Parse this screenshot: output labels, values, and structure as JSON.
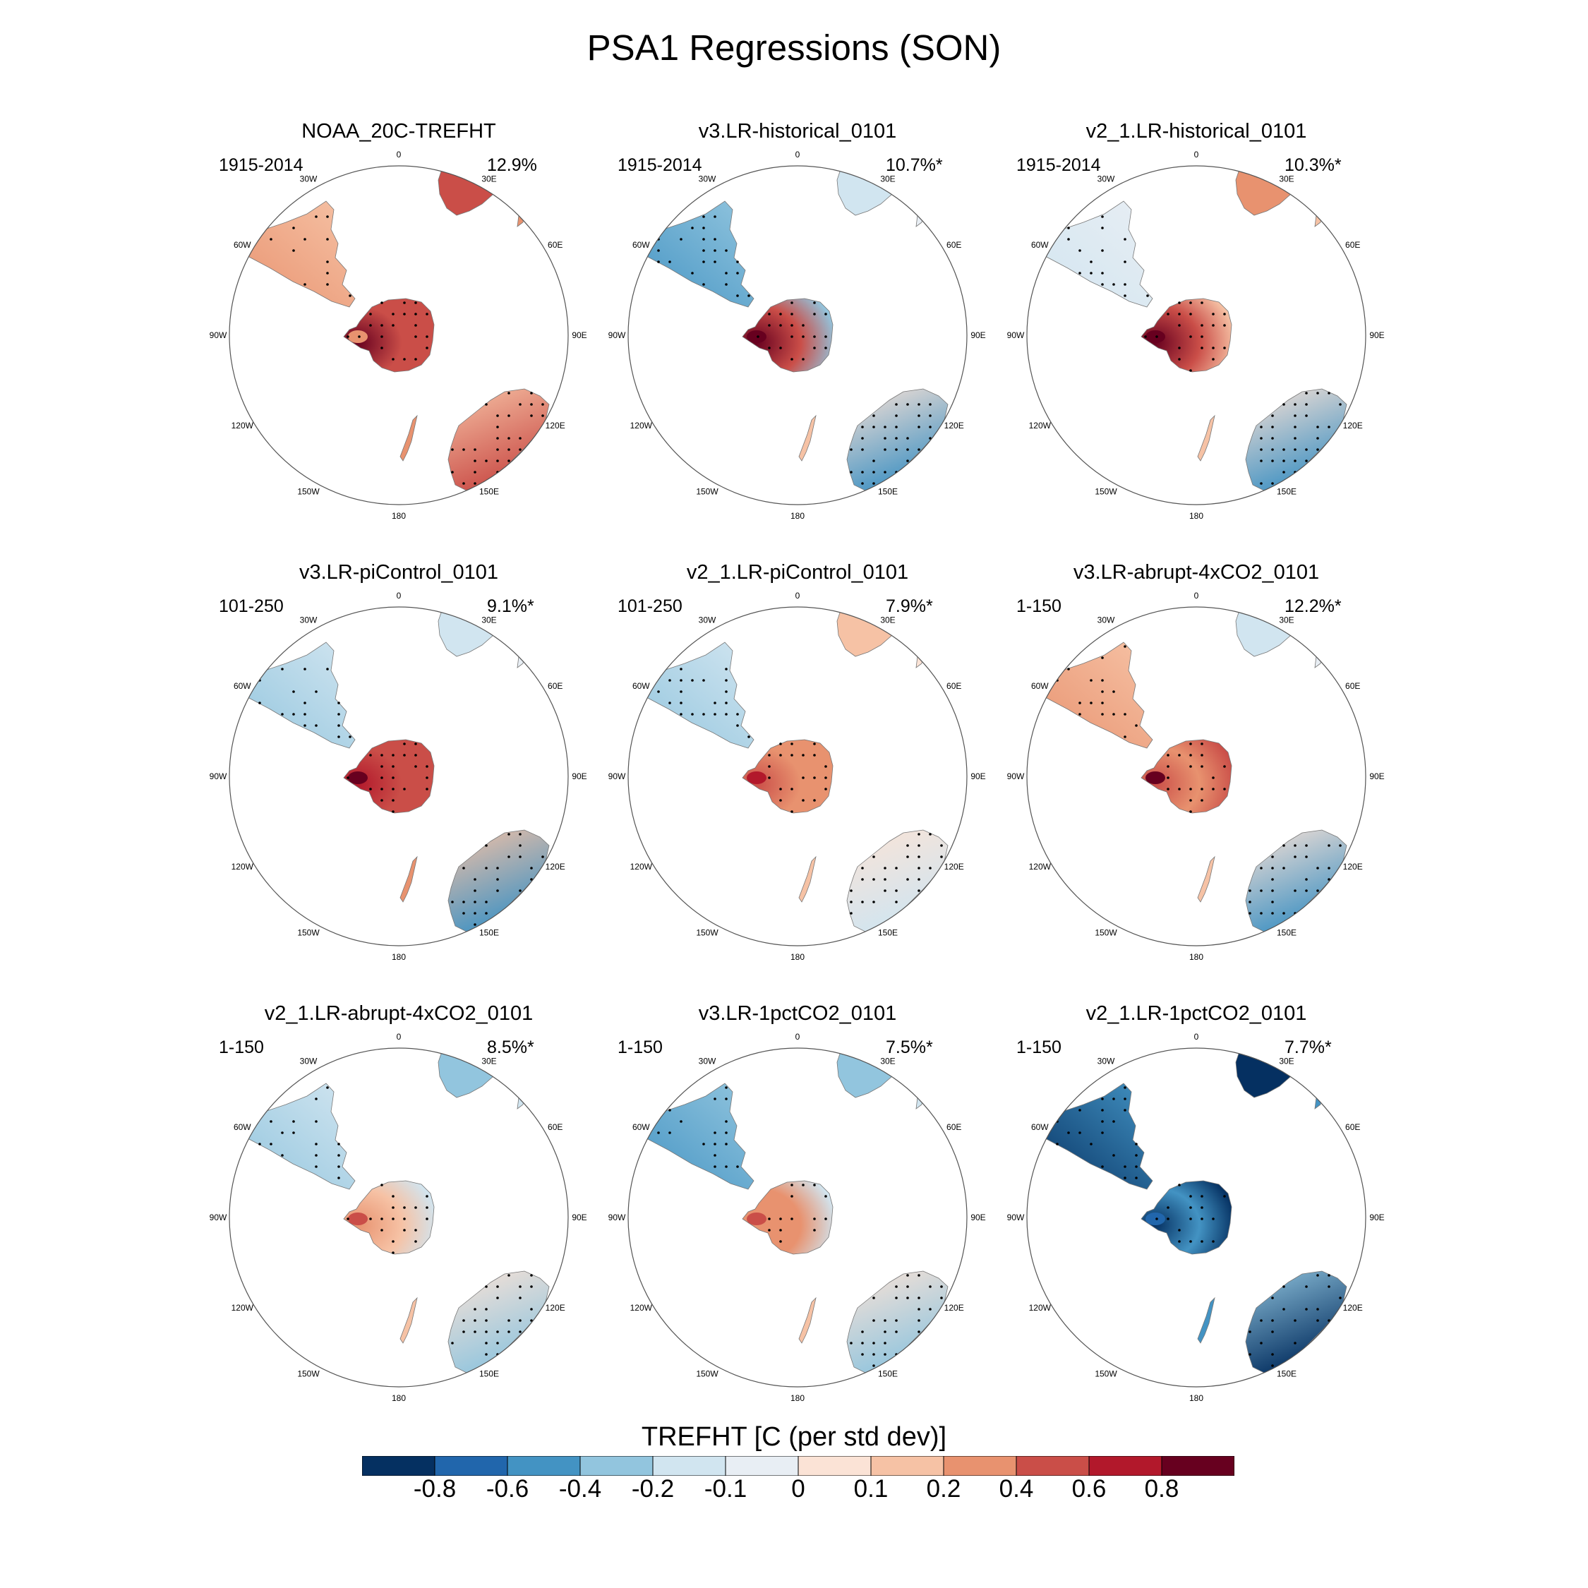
{
  "title": "PSA1 Regressions (SON)",
  "lon_labels": {
    "l0": "0",
    "l30e": "30E",
    "l60e": "60E",
    "l90e": "90E",
    "l120e": "120E",
    "l150e": "150E",
    "l180": "180",
    "l150w": "150W",
    "l120w": "120W",
    "l90w": "90W",
    "l60w": "60W",
    "l30w": "30W"
  },
  "panels": [
    {
      "title": "NOAA_20C-TREFHT",
      "period": "1915-2014",
      "pct": "12.9%",
      "pattern": {
        "am": 0.35,
        "ap": 0.85,
        "wa": 0.55,
        "ea": 0.45,
        "sam": 0.25,
        "nz": 0.3,
        "saf": 0.45
      }
    },
    {
      "title": "v3.LR-historical_0101",
      "period": "1915-2014",
      "pct": "10.7%*",
      "pattern": {
        "am": 0.95,
        "ap": 0.9,
        "wa": -0.5,
        "ea": -0.2,
        "sam": -0.4,
        "nz": 0.2,
        "saf": -0.15
      }
    },
    {
      "title": "v2_1.LR-historical_0101",
      "period": "1915-2014",
      "pct": "10.3%*",
      "pattern": {
        "am": 0.9,
        "ap": 0.85,
        "wa": -0.4,
        "ea": 0.2,
        "sam": -0.15,
        "nz": 0.2,
        "saf": 0.4
      }
    },
    {
      "title": "v3.LR-piControl_0101",
      "period": "101-250",
      "pct": "9.1%*",
      "pattern": {
        "am": 0.95,
        "ap": 0.7,
        "wa": -0.4,
        "ea": 0.45,
        "sam": -0.3,
        "nz": 0.3,
        "saf": -0.15
      }
    },
    {
      "title": "v2_1.LR-piControl_0101",
      "period": "101-250",
      "pct": "7.9%*",
      "pattern": {
        "am": 0.8,
        "ap": 0.6,
        "wa": -0.15,
        "ea": 0.3,
        "sam": -0.2,
        "nz": 0.2,
        "saf": 0.15
      }
    },
    {
      "title": "v3.LR-abrupt-4xCO2_0101",
      "period": "1-150",
      "pct": "12.2%*",
      "pattern": {
        "am": 0.9,
        "ap": 0.6,
        "wa": -0.4,
        "ea": 0.45,
        "sam": 0.35,
        "nz": 0.2,
        "saf": -0.15
      }
    },
    {
      "title": "v2_1.LR-abrupt-4xCO2_0101",
      "period": "1-150",
      "pct": "8.5%*",
      "pattern": {
        "am": 0.6,
        "ap": 0.3,
        "wa": -0.25,
        "ea": -0.15,
        "sam": -0.35,
        "nz": 0.15,
        "saf": -0.25
      }
    },
    {
      "title": "v3.LR-1pctCO2_0101",
      "period": "1-150",
      "pct": "7.5%*",
      "pattern": {
        "am": 0.45,
        "ap": 0.4,
        "wa": -0.2,
        "ea": -0.1,
        "sam": -0.4,
        "nz": 0.2,
        "saf": -0.3
      }
    },
    {
      "title": "v2_1.LR-1pctCO2_0101",
      "period": "1-150",
      "pct": "7.7%*",
      "pattern": {
        "am": -0.7,
        "ap": -0.9,
        "wa": -0.9,
        "ea": -0.9,
        "sam": -0.9,
        "nz": -0.5,
        "saf": -0.9
      }
    }
  ],
  "colorbar": {
    "title": "TREFHT [C (per std dev)]",
    "levels": [
      "-0.8",
      "-0.6",
      "-0.4",
      "-0.2",
      "-0.1",
      "0",
      "0.1",
      "0.2",
      "0.4",
      "0.6",
      "0.8"
    ],
    "colors": [
      "#053061",
      "#2166ac",
      "#4393c3",
      "#92c5de",
      "#d1e5f0",
      "#e8eef4",
      "#fbe3d6",
      "#f6c2a5",
      "#e8926f",
      "#ca4e48",
      "#b2182b",
      "#67001f"
    ]
  }
}
